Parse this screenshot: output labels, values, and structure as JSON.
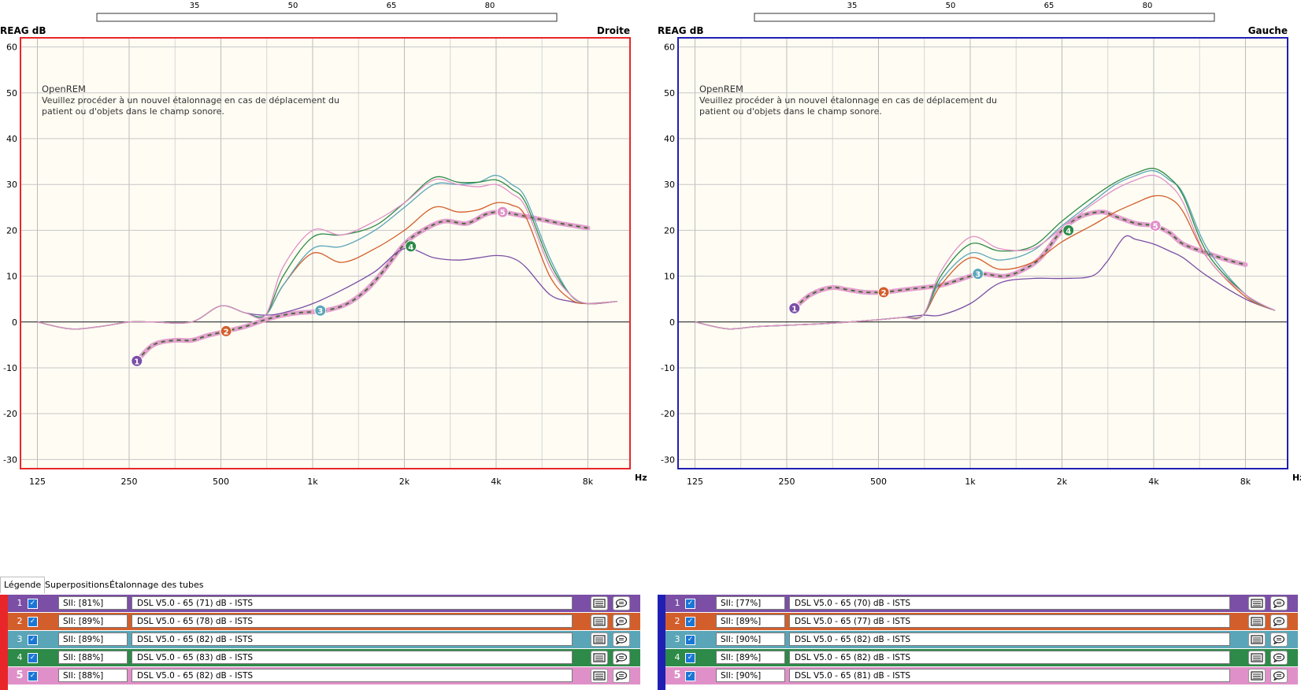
{
  "charts": [
    {
      "id": "right",
      "ylabel": "REAG dB",
      "side_label": "Droite",
      "xunit": "Hz",
      "frame_color": "#e8262a",
      "notice_title": "OpenREM",
      "notice_line1": "Veuillez procéder à un nouvel étalonnage en cas de déplacement du",
      "notice_line2": "patient ou d'objets dans le champ sonore."
    },
    {
      "id": "left",
      "ylabel": "REAG dB",
      "side_label": "Gauche",
      "xunit": "Hz",
      "frame_color": "#1f1fb4",
      "notice_title": "OpenREM",
      "notice_line1": "Veuillez procéder à un nouvel étalonnage en cas de déplacement du",
      "notice_line2": "patient ou d'objets dans le champ sonore."
    }
  ],
  "chart_data": [
    {
      "type": "line",
      "side": "Droite",
      "xscale": "log",
      "xlim": [
        110,
        11000
      ],
      "ylim": [
        -32,
        62
      ],
      "yticks": [
        60,
        50,
        40,
        30,
        20,
        10,
        0,
        -10,
        -20,
        -30
      ],
      "xticks": [
        125,
        250,
        500,
        1000,
        2000,
        4000,
        8000
      ],
      "xtick_labels": [
        "125",
        "250",
        "500",
        "1k",
        "2k",
        "4k",
        "8k"
      ],
      "top_scale_ticks": [
        35,
        50,
        65,
        80
      ],
      "series": [
        {
          "name": "1",
          "color": "#7b4fa6",
          "x": [
            125,
            160,
            200,
            250,
            300,
            400,
            500,
            600,
            700,
            800,
            1000,
            1250,
            1600,
            2000,
            2500,
            3000,
            3500,
            4000,
            4500,
            5000,
            6000,
            7000,
            8000,
            10000
          ],
          "y": [
            0,
            -1.5,
            -1,
            0,
            0,
            0,
            3.5,
            2,
            1.5,
            2,
            4,
            7,
            11,
            16,
            14,
            13.5,
            14,
            14.5,
            14,
            12,
            6,
            4.5,
            4,
            4.5
          ]
        },
        {
          "name": "2",
          "color": "#d25f2b",
          "x": [
            125,
            160,
            200,
            250,
            300,
            400,
            500,
            600,
            700,
            800,
            1000,
            1250,
            1600,
            2000,
            2500,
            3000,
            3500,
            4000,
            4500,
            5000,
            6000,
            7000,
            8000,
            10000
          ],
          "y": [
            0,
            -1.5,
            -1,
            0,
            0,
            0,
            3.5,
            2,
            1.5,
            8,
            15,
            13,
            16,
            20,
            25,
            24,
            24.5,
            26,
            25.5,
            23,
            10,
            5,
            4,
            4.5
          ]
        },
        {
          "name": "3",
          "color": "#5aa6b8",
          "x": [
            125,
            160,
            200,
            250,
            300,
            400,
            500,
            600,
            700,
            800,
            1000,
            1250,
            1600,
            2000,
            2500,
            3000,
            3500,
            4000,
            4500,
            5000,
            6000,
            7000,
            8000,
            10000
          ],
          "y": [
            0,
            -1.5,
            -1,
            0,
            0,
            0,
            3.5,
            2,
            1.5,
            8,
            16,
            16.5,
            20,
            25,
            30,
            30,
            30.5,
            32,
            30,
            27,
            14,
            6,
            4,
            4.5
          ]
        },
        {
          "name": "4",
          "color": "#2d8a48",
          "x": [
            125,
            160,
            200,
            250,
            300,
            400,
            500,
            600,
            700,
            800,
            1000,
            1250,
            1600,
            2000,
            2500,
            3000,
            3500,
            4000,
            4500,
            5000,
            6000,
            7000,
            8000,
            10000
          ],
          "y": [
            0,
            -1.5,
            -1,
            0,
            0,
            0,
            3.5,
            2,
            1.5,
            10,
            18.5,
            19,
            21,
            26,
            31.5,
            30.5,
            30.5,
            31,
            29,
            26,
            13,
            6,
            4,
            4.5
          ]
        },
        {
          "name": "5",
          "color": "#e090c8",
          "x": [
            125,
            160,
            200,
            250,
            300,
            400,
            500,
            600,
            700,
            800,
            1000,
            1250,
            1600,
            2000,
            2500,
            3000,
            3500,
            4000,
            4500,
            5000,
            6000,
            7000,
            8000,
            10000
          ],
          "y": [
            0,
            -1.5,
            -1,
            0,
            0,
            0,
            3.5,
            2,
            1.5,
            12,
            20,
            19,
            22,
            26,
            31,
            30,
            29.5,
            30,
            28,
            25,
            12,
            6,
            4,
            4.5
          ]
        },
        {
          "name": "target",
          "color": "#e3a1cf",
          "dashed": true,
          "x": [
            265,
            300,
            350,
            400,
            450,
            520,
            600,
            700,
            800,
            900,
            1100,
            1300,
            1500,
            1700,
            2000,
            2300,
            2700,
            3200,
            3700,
            4100,
            4600,
            5500,
            6500,
            8000
          ],
          "y": [
            -8.5,
            -5,
            -4,
            -4,
            -3,
            -2,
            -1,
            0.5,
            1.5,
            2,
            2.5,
            4,
            7,
            11,
            17,
            20,
            22,
            21.5,
            23.5,
            24,
            23.5,
            22.5,
            21.5,
            20.5
          ]
        }
      ],
      "markers": [
        {
          "label": "1",
          "x": 265,
          "y": -8.5,
          "color": "#7b4fa6"
        },
        {
          "label": "2",
          "x": 520,
          "y": -2,
          "color": "#d25f2b"
        },
        {
          "label": "3",
          "x": 1060,
          "y": 2.5,
          "color": "#5aa6b8"
        },
        {
          "label": "4",
          "x": 2100,
          "y": 16.5,
          "color": "#2d8a48"
        },
        {
          "label": "5",
          "x": 4200,
          "y": 24,
          "color": "#e090c8"
        }
      ]
    },
    {
      "type": "line",
      "side": "Gauche",
      "xscale": "log",
      "xlim": [
        110,
        11000
      ],
      "ylim": [
        -32,
        62
      ],
      "yticks": [
        60,
        50,
        40,
        30,
        20,
        10,
        0,
        -10,
        -20,
        -30
      ],
      "xticks": [
        125,
        250,
        500,
        1000,
        2000,
        4000,
        8000
      ],
      "xtick_labels": [
        "125",
        "250",
        "500",
        "1k",
        "2k",
        "4k",
        "8k"
      ],
      "top_scale_ticks": [
        35,
        50,
        65,
        80
      ],
      "series": [
        {
          "name": "1",
          "color": "#7b4fa6",
          "x": [
            125,
            160,
            200,
            300,
            400,
            500,
            600,
            700,
            800,
            1000,
            1250,
            1600,
            2000,
            2500,
            2800,
            3200,
            3500,
            4000,
            4500,
            5000,
            6000,
            8000,
            10000
          ],
          "y": [
            0,
            -1.5,
            -1,
            -0.5,
            0,
            0.5,
            1,
            1.5,
            1.5,
            4,
            8.5,
            9.5,
            9.5,
            10,
            13,
            18.5,
            18,
            17,
            15.5,
            14,
            10,
            5,
            2.5
          ]
        },
        {
          "name": "2",
          "color": "#d25f2b",
          "x": [
            125,
            160,
            200,
            300,
            400,
            500,
            600,
            700,
            800,
            1000,
            1250,
            1600,
            2000,
            2500,
            3000,
            3500,
            4000,
            4500,
            5000,
            6000,
            8000,
            10000
          ],
          "y": [
            0,
            -1.5,
            -1,
            -0.5,
            0,
            0.5,
            1,
            1.5,
            8,
            14,
            11.5,
            13,
            17.5,
            21,
            24,
            26,
            27.5,
            27,
            24,
            14,
            5.5,
            2.5
          ]
        },
        {
          "name": "3",
          "color": "#5aa6b8",
          "x": [
            125,
            160,
            200,
            300,
            400,
            500,
            600,
            700,
            800,
            1000,
            1250,
            1600,
            2000,
            2500,
            3000,
            3500,
            4000,
            4500,
            5000,
            6000,
            8000,
            10000
          ],
          "y": [
            0,
            -1.5,
            -1,
            -0.5,
            0,
            0.5,
            1,
            1.5,
            9,
            15,
            13.5,
            15.5,
            21,
            26,
            30,
            32,
            33,
            31,
            28,
            16,
            6,
            2.5
          ]
        },
        {
          "name": "4",
          "color": "#2d8a48",
          "x": [
            125,
            160,
            200,
            300,
            400,
            500,
            600,
            700,
            800,
            1000,
            1250,
            1600,
            2000,
            2500,
            3000,
            3500,
            4000,
            4500,
            5000,
            6000,
            8000,
            10000
          ],
          "y": [
            0,
            -1.5,
            -1,
            -0.5,
            0,
            0.5,
            1,
            1.5,
            10,
            17,
            15.5,
            16.5,
            22,
            27,
            30.5,
            32.5,
            33.5,
            31.5,
            27.5,
            15,
            6,
            2.5
          ]
        },
        {
          "name": "5",
          "color": "#e090c8",
          "x": [
            125,
            160,
            200,
            300,
            400,
            500,
            600,
            700,
            800,
            1000,
            1250,
            1600,
            2000,
            2500,
            3000,
            3500,
            4000,
            4500,
            5000,
            6000,
            8000,
            10000
          ],
          "y": [
            0,
            -1.5,
            -1,
            -0.5,
            0,
            0.5,
            1,
            1.5,
            11,
            18.5,
            16,
            16,
            20.5,
            25.5,
            29,
            31,
            32,
            30,
            26,
            14,
            6,
            2.5
          ]
        },
        {
          "name": "target",
          "color": "#e3a1cf",
          "dashed": true,
          "x": [
            265,
            300,
            350,
            400,
            450,
            520,
            600,
            700,
            800,
            900,
            1000,
            1100,
            1300,
            1500,
            1700,
            2000,
            2300,
            2700,
            3000,
            3500,
            4000,
            4500,
            5000,
            6000,
            7000,
            8000
          ],
          "y": [
            3,
            6,
            7.5,
            7,
            6.5,
            6.5,
            7,
            7.5,
            8,
            9,
            10,
            10.5,
            10,
            11.5,
            14,
            20,
            23,
            24,
            23,
            21.5,
            21,
            19.5,
            17,
            15,
            13.5,
            12.5
          ]
        }
      ],
      "markers": [
        {
          "label": "1",
          "x": 265,
          "y": 3,
          "color": "#7b4fa6"
        },
        {
          "label": "2",
          "x": 520,
          "y": 6.5,
          "color": "#d25f2b"
        },
        {
          "label": "3",
          "x": 1060,
          "y": 10.5,
          "color": "#5aa6b8"
        },
        {
          "label": "4",
          "x": 2100,
          "y": 20,
          "color": "#2d8a48"
        },
        {
          "label": "5",
          "x": 4050,
          "y": 21,
          "color": "#e090c8"
        }
      ]
    }
  ],
  "tabs": [
    {
      "label": "Légende",
      "active": true
    },
    {
      "label": "Superpositions",
      "active": false
    },
    {
      "label": "Étalonnage des tubes",
      "active": false
    }
  ],
  "legend": {
    "right": {
      "stripe_color": "#e8262a",
      "rows": [
        {
          "num": "1",
          "sii": "SII: [81%]",
          "desc": "DSL V5.0 - 65 (71) dB - ISTS",
          "color": "#7b4fa6",
          "checked": true
        },
        {
          "num": "2",
          "sii": "SII: [89%]",
          "desc": "DSL V5.0 - 65 (78) dB - ISTS",
          "color": "#d25f2b",
          "checked": true
        },
        {
          "num": "3",
          "sii": "SII: [89%]",
          "desc": "DSL V5.0 - 65 (82) dB - ISTS",
          "color": "#5aa6b8",
          "checked": true
        },
        {
          "num": "4",
          "sii": "SII: [88%]",
          "desc": "DSL V5.0 - 65 (83) dB - ISTS",
          "color": "#2d8a48",
          "checked": true
        },
        {
          "num": "5",
          "sii": "SII: [88%]",
          "desc": "DSL V5.0 - 65 (82) dB - ISTS",
          "color": "#e090c8",
          "checked": true,
          "bold": true
        }
      ]
    },
    "left": {
      "stripe_color": "#1f1fb4",
      "rows": [
        {
          "num": "1",
          "sii": "SII: [77%]",
          "desc": "DSL V5.0 - 65 (70) dB - ISTS",
          "color": "#7b4fa6",
          "checked": true
        },
        {
          "num": "2",
          "sii": "SII: [89%]",
          "desc": "DSL V5.0 - 65 (77) dB - ISTS",
          "color": "#d25f2b",
          "checked": true
        },
        {
          "num": "3",
          "sii": "SII: [90%]",
          "desc": "DSL V5.0 - 65 (82) dB - ISTS",
          "color": "#5aa6b8",
          "checked": true
        },
        {
          "num": "4",
          "sii": "SII: [89%]",
          "desc": "DSL V5.0 - 65 (82) dB - ISTS",
          "color": "#2d8a48",
          "checked": true
        },
        {
          "num": "5",
          "sii": "SII: [90%]",
          "desc": "DSL V5.0 - 65 (81) dB - ISTS",
          "color": "#e090c8",
          "checked": true,
          "bold": true
        }
      ]
    }
  },
  "icons": {
    "details": "list-details-icon",
    "comment": "comment-bubble-icon",
    "check": "checkbox-checked-icon"
  }
}
